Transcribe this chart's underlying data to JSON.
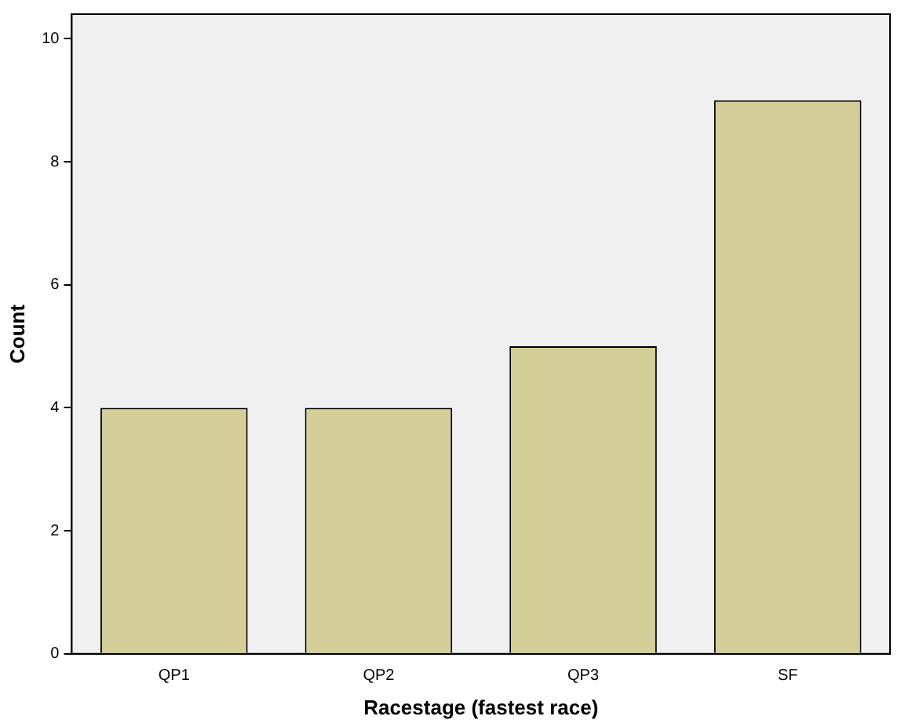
{
  "chart_data": {
    "type": "bar",
    "xlabel": "Racestage (fastest race)",
    "ylabel": "Count",
    "categories": [
      "QP1",
      "QP2",
      "QP3",
      "SF"
    ],
    "values": [
      4,
      4,
      5,
      9
    ],
    "color": "#d4cf98",
    "ylim": [
      0,
      10.4
    ],
    "yticks": [
      0,
      2,
      4,
      6,
      8,
      10
    ],
    "grid": false,
    "legend": false
  }
}
